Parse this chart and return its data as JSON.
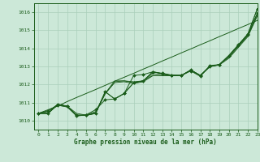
{
  "title": "Graphe pression niveau de la mer (hPa)",
  "background_color": "#cce8d8",
  "grid_color": "#aacfbb",
  "line_color": "#1a5c1a",
  "xlim": [
    -0.5,
    23
  ],
  "ylim": [
    1009.5,
    1016.5
  ],
  "yticks": [
    1010,
    1011,
    1012,
    1013,
    1014,
    1015,
    1016
  ],
  "xticks": [
    0,
    1,
    2,
    3,
    4,
    5,
    6,
    7,
    8,
    9,
    10,
    11,
    12,
    13,
    14,
    15,
    16,
    17,
    18,
    19,
    20,
    21,
    22,
    23
  ],
  "series": [
    [
      1010.4,
      1010.4,
      1010.9,
      1010.8,
      1010.4,
      1010.3,
      1010.4,
      1011.6,
      1011.2,
      1011.5,
      1012.1,
      1012.2,
      1012.7,
      1012.6,
      1012.5,
      1012.5,
      1012.8,
      1012.5,
      1013.0,
      1013.1,
      1013.6,
      1014.2,
      1014.8,
      1016.2
    ],
    [
      1010.4,
      1010.5,
      1010.9,
      1010.8,
      1010.3,
      1010.3,
      1010.5,
      1011.5,
      1012.2,
      1012.2,
      1012.15,
      1012.2,
      1012.6,
      1012.55,
      1012.5,
      1012.5,
      1012.8,
      1012.5,
      1013.0,
      1013.1,
      1013.55,
      1014.15,
      1014.75,
      1015.95
    ],
    [
      1010.4,
      1010.4,
      1010.9,
      1010.8,
      1010.3,
      1010.3,
      1010.45,
      1011.5,
      1012.15,
      1012.2,
      1012.1,
      1012.2,
      1012.5,
      1012.5,
      1012.5,
      1012.5,
      1012.8,
      1012.5,
      1013.0,
      1013.1,
      1013.5,
      1014.1,
      1014.7,
      1015.85
    ],
    [
      1010.4,
      1010.4,
      1010.85,
      1010.75,
      1010.28,
      1010.28,
      1010.4,
      1011.48,
      1012.1,
      1012.15,
      1012.05,
      1012.15,
      1012.48,
      1012.48,
      1012.48,
      1012.48,
      1012.78,
      1012.48,
      1012.98,
      1013.08,
      1013.45,
      1014.05,
      1014.65,
      1015.8
    ]
  ],
  "straight_line": [
    1010.4,
    1010.6,
    1010.8,
    1011.05,
    1011.28,
    1011.5,
    1011.72,
    1011.95,
    1012.18,
    1012.4,
    1012.62,
    1012.85,
    1013.07,
    1013.3,
    1013.52,
    1013.75,
    1013.97,
    1014.2,
    1014.42,
    1014.65,
    1014.87,
    1015.1,
    1015.32,
    1015.55
  ],
  "marker_series_y": [
    1010.4,
    1010.4,
    1010.9,
    1010.8,
    1010.3,
    1010.3,
    1010.4,
    1011.6,
    1011.2,
    1011.5,
    1012.1,
    1012.2,
    1012.7,
    1012.6,
    1012.5,
    1012.5,
    1012.8,
    1012.5,
    1013.0,
    1013.1,
    1013.6,
    1014.2,
    1014.8,
    1016.2
  ],
  "marker_series2_y": [
    1010.4,
    1010.55,
    1010.85,
    1010.78,
    1010.25,
    1010.32,
    1010.6,
    1011.15,
    1011.2,
    1011.5,
    1012.5,
    1012.55,
    1012.7,
    1012.62,
    1012.52,
    1012.5,
    1012.75,
    1012.45,
    1013.05,
    1013.1,
    1013.6,
    1014.15,
    1014.75,
    1015.95
  ]
}
